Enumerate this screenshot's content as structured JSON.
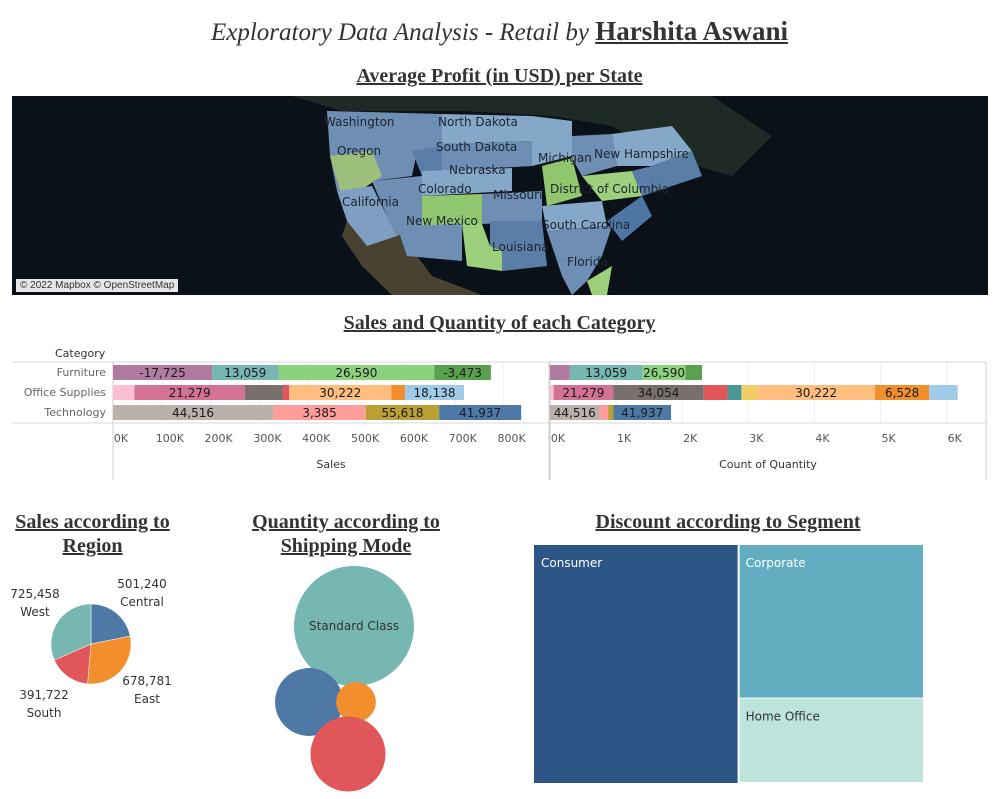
{
  "header": {
    "title_italic": "Exploratory Data Analysis - Retail",
    "by": "by",
    "author": "Harshita Aswani"
  },
  "map": {
    "title": "Average Profit (in USD) per State",
    "attribution": "© 2022 Mapbox © OpenStreetMap",
    "state_labels": [
      "Washington",
      "North Dakota",
      "Oregon",
      "South Dakota",
      "New Hampshire",
      "Michigan",
      "Nebraska",
      "Colorado",
      "District of Columbia",
      "Missouri",
      "California",
      "New Mexico",
      "South Carolina",
      "Louisiana",
      "Florida"
    ]
  },
  "colors": {
    "blue": "#4e79a7",
    "orange": "#f28e2b",
    "red": "#e15759",
    "teal": "#76b7b2",
    "green": "#59a14f",
    "purple": "#b07aa1",
    "pink": "#ff9da7",
    "brown": "#9c755f",
    "grey": "#bab0ac",
    "mustard": "#b9a035",
    "treemap_dark": "#2d5686",
    "treemap_mid": "#62aec0",
    "treemap_light": "#bde4da"
  },
  "chart_data": [
    {
      "type": "bar",
      "title": "Sales and Quantity of each Category",
      "category_header": "Category",
      "categories": [
        "Furniture",
        "Office Supplies",
        "Technology"
      ],
      "stacked": true,
      "panels": [
        {
          "xlabel": "Sales",
          "xlim": [
            0,
            850000
          ],
          "ticks": [
            0,
            100000,
            200000,
            300000,
            400000,
            500000,
            600000,
            700000,
            800000
          ],
          "tick_labels": [
            "0K",
            "100K",
            "200K",
            "300K",
            "400K",
            "500K",
            "600K",
            "700K",
            "800K"
          ],
          "segments": [
            [
              {
                "value": 203000,
                "color": "#b07aa1",
                "label": "-17,725"
              },
              {
                "value": 136000,
                "color": "#76b7b2",
                "label": "13,059"
              },
              {
                "value": 319000,
                "color": "#8cd17d",
                "label": "26,590"
              },
              {
                "value": 116000,
                "color": "#59a14f",
                "label": "-3,473"
              }
            ],
            [
              {
                "value": 44000,
                "color": "#fabfd2",
                "label": ""
              },
              {
                "value": 226000,
                "color": "#d37295",
                "label": "21,279"
              },
              {
                "value": 78000,
                "color": "#79706e",
                "label": ""
              },
              {
                "value": 13000,
                "color": "#e15759",
                "label": ""
              },
              {
                "value": 209000,
                "color": "#ffbe7d",
                "label": "30,222"
              },
              {
                "value": 28000,
                "color": "#f28e2b",
                "label": ""
              },
              {
                "value": 121000,
                "color": "#a0cbe8",
                "label": "18,138"
              }
            ],
            [
              {
                "value": 328000,
                "color": "#bab0ac",
                "label": "44,516"
              },
              {
                "value": 190000,
                "color": "#ff9d9a",
                "label": "3,385"
              },
              {
                "value": 150000,
                "color": "#b9a035",
                "label": "55,618"
              },
              {
                "value": 168000,
                "color": "#4e79a7",
                "label": "41,937"
              }
            ]
          ]
        },
        {
          "xlabel": "Count of Quantity",
          "xlim": [
            0,
            6200
          ],
          "ticks": [
            0,
            1000,
            2000,
            3000,
            4000,
            5000,
            6000
          ],
          "tick_labels": [
            "0K",
            "1K",
            "2K",
            "3K",
            "4K",
            "5K",
            "6K"
          ],
          "segments": [
            [
              {
                "value": 300,
                "color": "#b07aa1",
                "label": ""
              },
              {
                "value": 1100,
                "color": "#76b7b2",
                "label": "13,059"
              },
              {
                "value": 650,
                "color": "#8cd17d",
                "label": "26,590"
              },
              {
                "value": 250,
                "color": "#59a14f",
                "label": ""
              }
            ],
            [
              {
                "value": 55,
                "color": "#fabfd2",
                "label": ""
              },
              {
                "value": 900,
                "color": "#d37295",
                "label": "21,279"
              },
              {
                "value": 1370,
                "color": "#79706e",
                "label": "34,054"
              },
              {
                "value": 360,
                "color": "#e15759",
                "label": ""
              },
              {
                "value": 210,
                "color": "#499894",
                "label": ""
              },
              {
                "value": 240,
                "color": "#f1ce63",
                "label": ""
              },
              {
                "value": 1780,
                "color": "#ffbe7d",
                "label": "30,222"
              },
              {
                "value": 820,
                "color": "#f28e2b",
                "label": "6,528"
              },
              {
                "value": 430,
                "color": "#a0cbe8",
                "label": ""
              }
            ],
            [
              {
                "value": 750,
                "color": "#bab0ac",
                "label": "44,516"
              },
              {
                "value": 130,
                "color": "#ff9d9a",
                "label": ""
              },
              {
                "value": 80,
                "color": "#b9a035",
                "label": ""
              },
              {
                "value": 870,
                "color": "#4e79a7",
                "label": "41,937"
              }
            ]
          ]
        }
      ]
    },
    {
      "type": "pie",
      "title": "Sales according to Region",
      "slices": [
        {
          "label": "Central",
          "value": 501240,
          "display": "501,240",
          "color": "#4e79a7"
        },
        {
          "label": "East",
          "value": 678781,
          "display": "678,781",
          "color": "#f28e2b"
        },
        {
          "label": "South",
          "value": 391722,
          "display": "391,722",
          "color": "#e15759"
        },
        {
          "label": "West",
          "value": 725458,
          "display": "725,458",
          "color": "#76b7b2"
        }
      ]
    },
    {
      "type": "scatter",
      "subtype": "packed-bubble",
      "title": "Quantity according to Shipping Mode",
      "bubbles": [
        {
          "label": "Standard Class",
          "value": 22800,
          "color": "#76b7b2",
          "show_label": true
        },
        {
          "label": "",
          "value": 7300,
          "color": "#4e79a7",
          "show_label": false
        },
        {
          "label": "",
          "value": 2500,
          "color": "#f28e2b",
          "show_label": false
        },
        {
          "label": "",
          "value": 8900,
          "color": "#e15759",
          "show_label": false
        }
      ]
    },
    {
      "type": "heatmap",
      "subtype": "treemap",
      "title": "Discount according to Segment",
      "segments": [
        {
          "label": "Consumer",
          "value": 820,
          "color": "#2d5686"
        },
        {
          "label": "Corporate",
          "value": 477,
          "color": "#62aec0"
        },
        {
          "label": "Home Office",
          "value": 262,
          "color": "#bde4da"
        }
      ]
    }
  ]
}
